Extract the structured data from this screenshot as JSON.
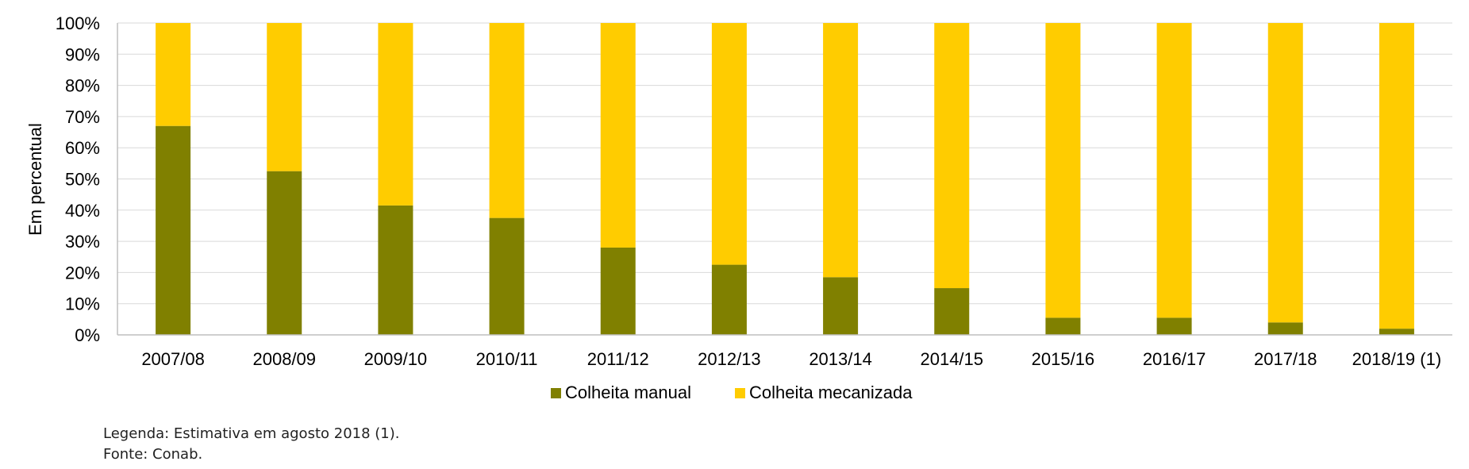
{
  "chart_data": {
    "type": "bar",
    "stacked": true,
    "percent_stacked": true,
    "categories": [
      "2007/08",
      "2008/09",
      "2009/10",
      "2010/11",
      "2011/12",
      "2012/13",
      "2013/14",
      "2014/15",
      "2015/16",
      "2016/17",
      "2017/18",
      "2018/19 (1)"
    ],
    "series": [
      {
        "name": "Colheita manual",
        "color": "#808000",
        "values": [
          67,
          52.5,
          41.5,
          37.5,
          28,
          22.5,
          18.5,
          15,
          5.5,
          5.5,
          4,
          2
        ]
      },
      {
        "name": "Colheita mecanizada",
        "color": "#FFCC00",
        "values": [
          33,
          47.5,
          58.5,
          62.5,
          72,
          77.5,
          81.5,
          85,
          94.5,
          94.5,
          96,
          98
        ]
      }
    ],
    "title": "",
    "xlabel": "",
    "ylabel": "Em percentual",
    "ylim": [
      0,
      100
    ],
    "yticks": [
      "0%",
      "10%",
      "20%",
      "30%",
      "40%",
      "50%",
      "60%",
      "70%",
      "80%",
      "90%",
      "100%"
    ],
    "grid": true,
    "legend": "bottom"
  },
  "notes": {
    "legend_line": "Legenda: Estimativa em agosto 2018 (1).",
    "source_line": "Fonte: Conab."
  }
}
